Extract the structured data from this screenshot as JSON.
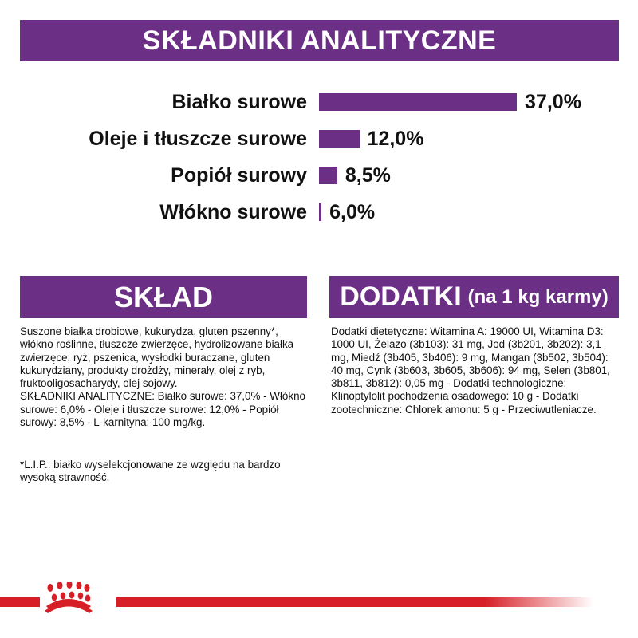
{
  "header": {
    "title": "SKŁADNIKI ANALITYCZNE"
  },
  "chart_data": {
    "type": "bar",
    "orientation": "horizontal",
    "categories": [
      "Białko surowe",
      "Oleje i tłuszcze surowe",
      "Popiół surowy",
      "Włókno surowe"
    ],
    "values": [
      37.0,
      12.0,
      8.5,
      6.0
    ],
    "value_labels": [
      "37,0%",
      "12,0%",
      "8,5%",
      "6,0%"
    ],
    "color": "#6c2f86"
  },
  "sklad": {
    "title": "SKŁAD",
    "text": "Suszone białka drobiowe, kukurydza, gluten pszenny*, włókno roślinne, tłuszcze zwierzęce, hydrolizowane białka zwierzęce, ryż, pszenica, wysłodki buraczane, gluten kukurydziany, produkty drożdży, minerały, olej z ryb, fruktooligosacharydy, olej sojowy.\nSKŁADNIKI ANALITYCZNE: Białko surowe: 37,0% - Włókno surowe: 6,0% - Oleje i tłuszcze surowe: 12,0% - Popiół surowy: 8,5% - L-karnityna: 100 mg/kg.",
    "note": "*L.I.P.: białko wyselekcjonowane ze względu na bardzo wysoką strawność."
  },
  "dodatki": {
    "title": "DODATKI",
    "subtitle": "(na 1 kg karmy)",
    "text": "Dodatki dietetyczne: Witamina A: 19000 UI, Witamina D3: 1000 UI, Żelazo (3b103): 31 mg, Jod (3b201, 3b202): 3,1 mg, Miedź (3b405, 3b406): 9 mg, Mangan (3b502, 3b504): 40 mg, Cynk (3b603, 3b605, 3b606): 94 mg, Selen (3b801, 3b811, 3b812): 0,05 mg - Dodatki technologiczne: Klinoptylolit pochodzenia osadowego: 10 g - Dodatki zootechniczne: Chlorek amonu: 5 g - Przeciwutleniacze."
  },
  "brand": {
    "logo": "Royal Canin crown",
    "color": "#d61f26"
  }
}
